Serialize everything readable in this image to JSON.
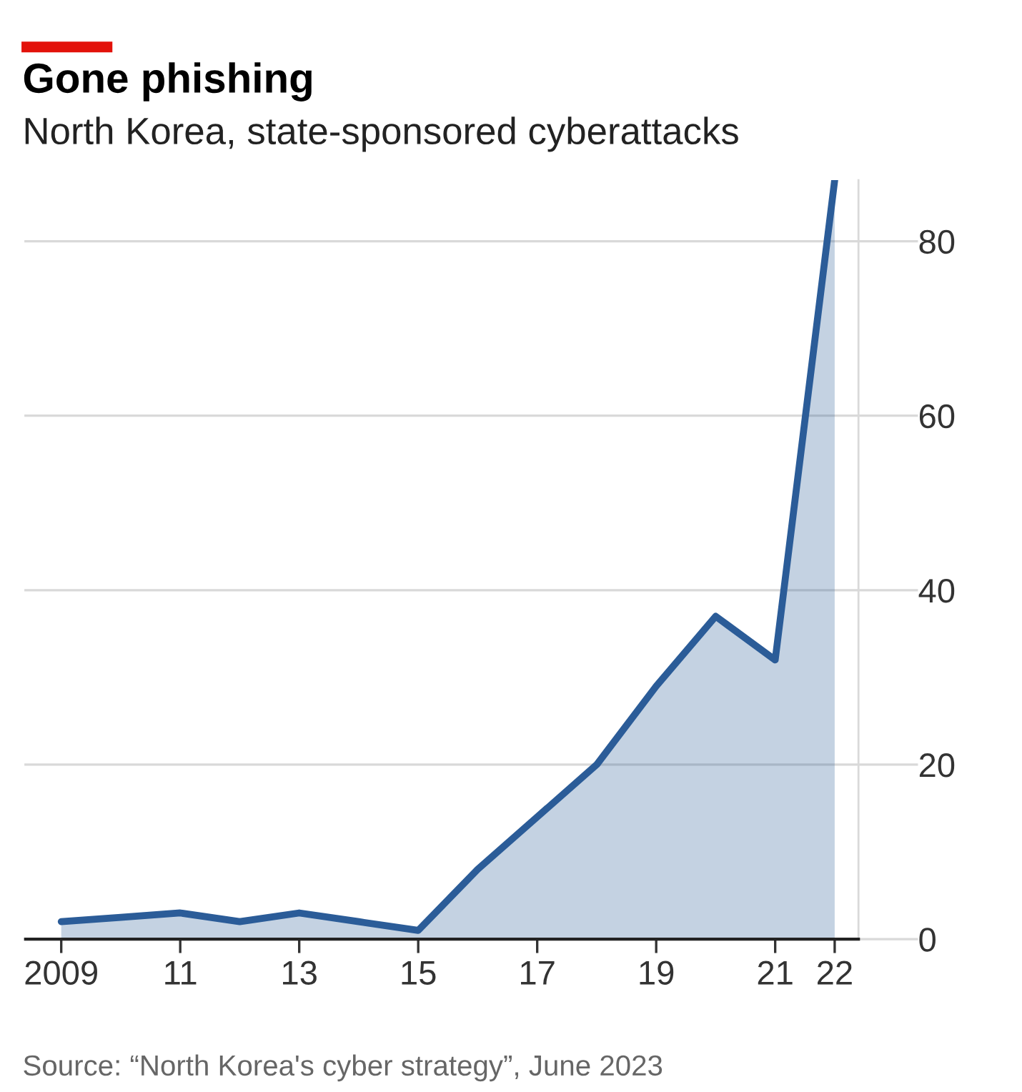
{
  "chart_data": {
    "type": "area",
    "title": "Gone phishing",
    "subtitle": "North Korea, state-sponsored cyberattacks",
    "x": [
      2009,
      2010,
      2011,
      2012,
      2013,
      2014,
      2015,
      2016,
      2017,
      2018,
      2019,
      2020,
      2021,
      2022
    ],
    "series": [
      {
        "color": "#2b5c98",
        "values": [
          2,
          2.5,
          3,
          2,
          3,
          2,
          1,
          8,
          14,
          20,
          29,
          37,
          32,
          87
        ]
      }
    ],
    "xlim": [
      2008.4,
      2022.4
    ],
    "ylim": [
      0,
      87
    ],
    "xticks": [
      {
        "value": 2009,
        "label": "2009"
      },
      {
        "value": 2011,
        "label": "11"
      },
      {
        "value": 2013,
        "label": "13"
      },
      {
        "value": 2015,
        "label": "15"
      },
      {
        "value": 2017,
        "label": "17"
      },
      {
        "value": 2019,
        "label": "19"
      },
      {
        "value": 2021,
        "label": "21"
      },
      {
        "value": 2022,
        "label": "22"
      }
    ],
    "yticks": [
      0,
      20,
      40,
      60,
      80
    ],
    "grid": "y",
    "legend": false,
    "annotations": [
      "Source: “North Korea's cyber strategy”, June 2023"
    ]
  }
}
